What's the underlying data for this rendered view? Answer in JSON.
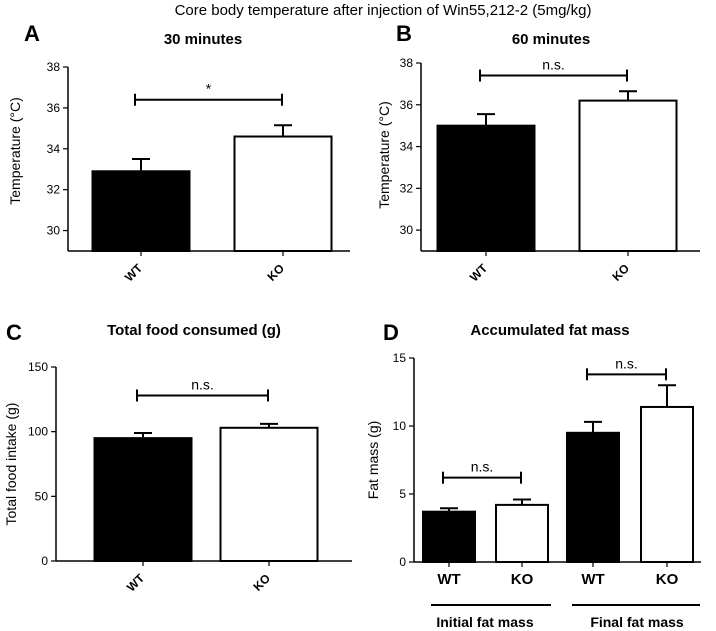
{
  "figure_title": "Core body temperature after injection of Win55,212-2 (5mg/kg)",
  "colors": {
    "wt": "#000000",
    "ko": "#ffffff",
    "stroke": "#000000"
  },
  "chart_data": [
    {
      "panel": "A",
      "type": "bar",
      "title": "30 minutes",
      "xlabel": "",
      "ylabel": "Temperature (°C)",
      "ylim": [
        29,
        38
      ],
      "yticks": [
        30,
        32,
        34,
        36,
        38
      ],
      "categories": [
        "WT",
        "KO"
      ],
      "values": [
        32.9,
        34.6
      ],
      "errors": [
        0.6,
        0.55
      ],
      "comparisons": [
        {
          "from": 0,
          "to": 1,
          "label": "*",
          "y": 36.4
        }
      ]
    },
    {
      "panel": "B",
      "type": "bar",
      "title": "60 minutes",
      "xlabel": "",
      "ylabel": "Temperature (°C)",
      "ylim": [
        29,
        38
      ],
      "yticks": [
        30,
        32,
        34,
        36,
        38
      ],
      "categories": [
        "WT",
        "KO"
      ],
      "values": [
        35.0,
        36.2
      ],
      "errors": [
        0.55,
        0.45
      ],
      "comparisons": [
        {
          "from": 0,
          "to": 1,
          "label": "n.s.",
          "y": 37.4
        }
      ]
    },
    {
      "panel": "C",
      "type": "bar",
      "title": "Total food consumed (g)",
      "xlabel": "",
      "ylabel": "Total food intake (g)",
      "ylim": [
        0,
        150
      ],
      "yticks": [
        0,
        50,
        100,
        150
      ],
      "categories": [
        "WT",
        "KO"
      ],
      "values": [
        95,
        103
      ],
      "errors": [
        4,
        3
      ],
      "comparisons": [
        {
          "from": 0,
          "to": 1,
          "label": "n.s.",
          "y": 128
        }
      ]
    },
    {
      "panel": "D",
      "type": "bar",
      "title": "Accumulated fat mass",
      "xlabel": "",
      "ylabel": "Fat mass (g)",
      "ylim": [
        0,
        15
      ],
      "yticks": [
        0,
        5,
        10,
        15
      ],
      "categories": [
        "WT",
        "KO",
        "WT",
        "KO"
      ],
      "groups": [
        {
          "label": "Initial fat mass",
          "indices": [
            0,
            1
          ]
        },
        {
          "label": "Final fat mass",
          "indices": [
            2,
            3
          ]
        }
      ],
      "values": [
        3.7,
        4.2,
        9.5,
        11.4
      ],
      "errors": [
        0.25,
        0.4,
        0.8,
        1.6
      ],
      "comparisons": [
        {
          "from": 0,
          "to": 1,
          "label": "n.s.",
          "y": 6.2
        },
        {
          "from": 2,
          "to": 3,
          "label": "n.s.",
          "y": 13.8
        }
      ]
    }
  ]
}
